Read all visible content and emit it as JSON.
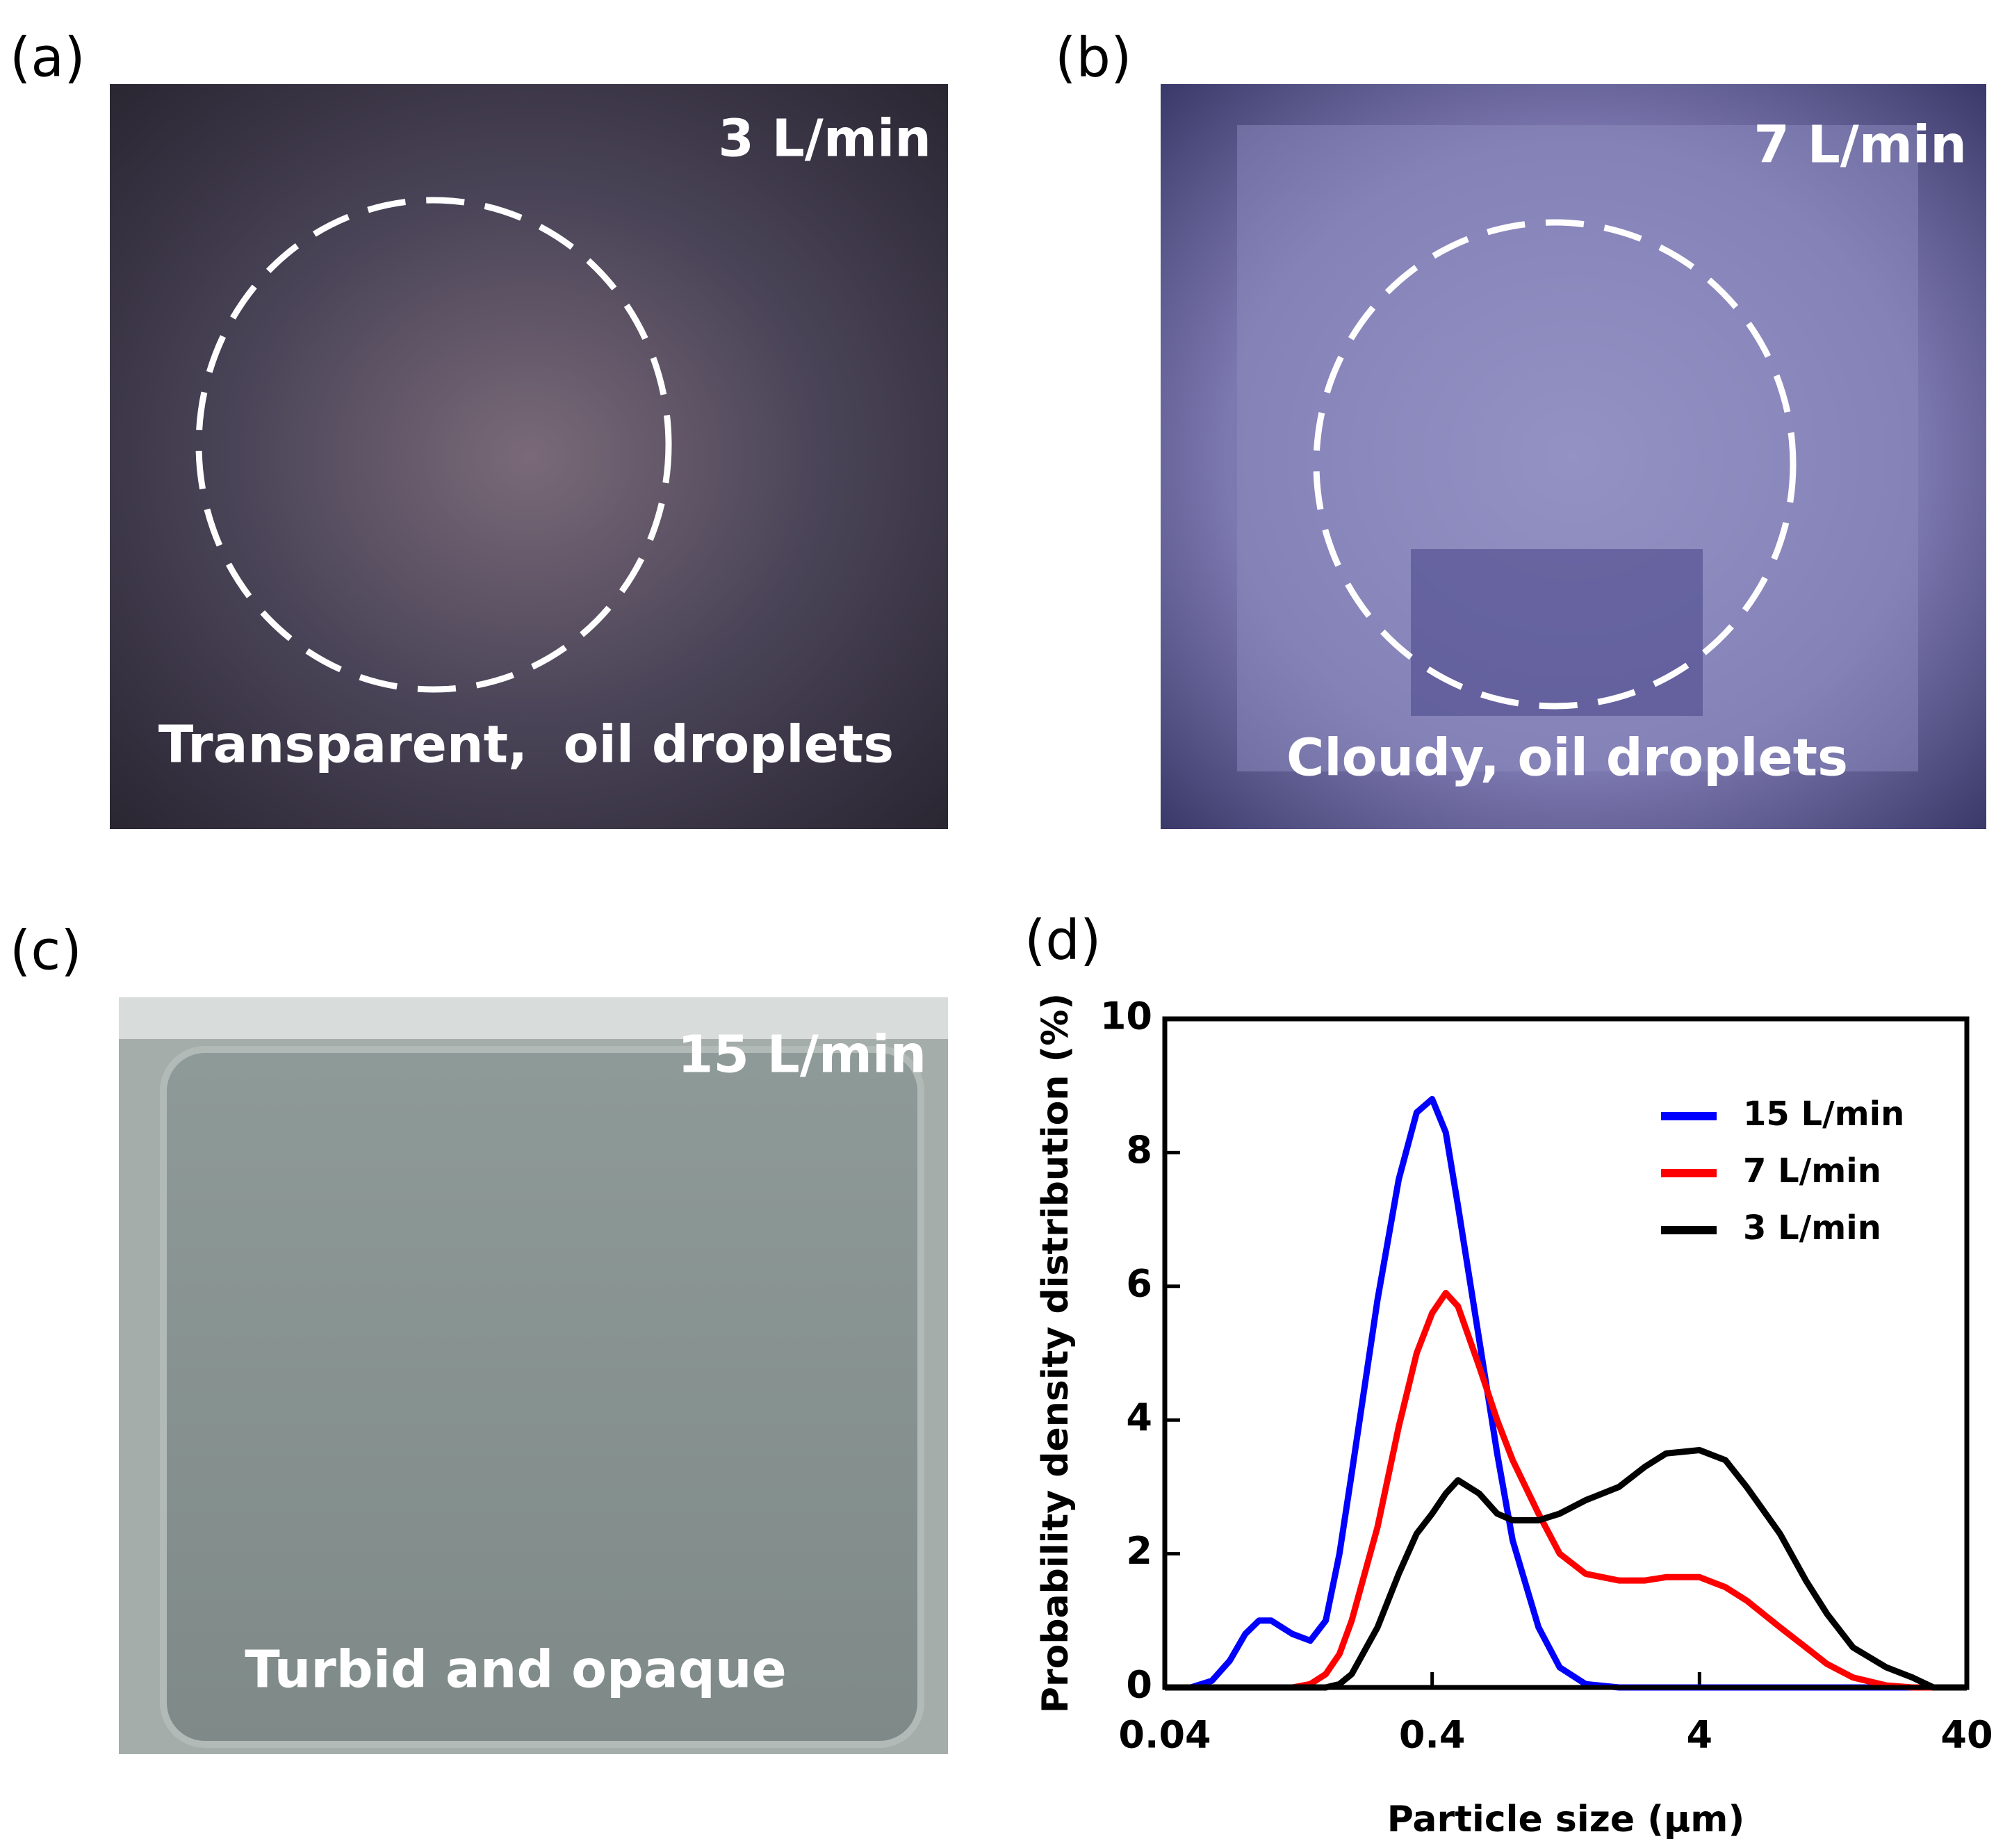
{
  "panels": [
    {
      "label": "(a)",
      "flow": "3 L/min",
      "caption": "Transparent,  oil droplets"
    },
    {
      "label": "(b)",
      "flow": "7 L/min",
      "caption": "Cloudy, oil droplets"
    },
    {
      "label": "(c)",
      "flow": "15 L/min",
      "caption": "Turbid and opaque"
    }
  ],
  "chart_data": {
    "type": "line",
    "panel_label": "(d)",
    "x_label": "Particle size (µm)",
    "y_label": "Probability density distribution (%)",
    "x_scale": "log",
    "xlim": [
      0.04,
      40
    ],
    "xticks": [
      0.04,
      0.4,
      4,
      40
    ],
    "ylim": [
      0,
      10
    ],
    "yticks": [
      0,
      2,
      4,
      6,
      8,
      10
    ],
    "legend": "upper right",
    "x": [
      0.04,
      0.05,
      0.06,
      0.07,
      0.08,
      0.09,
      0.1,
      0.12,
      0.14,
      0.16,
      0.18,
      0.2,
      0.25,
      0.3,
      0.35,
      0.4,
      0.45,
      0.5,
      0.6,
      0.7,
      0.8,
      1,
      1.2,
      1.5,
      2,
      2.5,
      3,
      4,
      5,
      6,
      8,
      10,
      12,
      15,
      20,
      25,
      30,
      40
    ],
    "series": [
      {
        "name": "15 L/min",
        "color": "#0000ff",
        "values": [
          0,
          0,
          0.1,
          0.4,
          0.8,
          1.0,
          1.0,
          0.8,
          0.7,
          1.0,
          2.0,
          3.2,
          5.8,
          7.6,
          8.6,
          8.8,
          8.3,
          7.2,
          5.2,
          3.5,
          2.2,
          0.9,
          0.3,
          0.05,
          0,
          0,
          0,
          0,
          0,
          0,
          0,
          0,
          0,
          0,
          0,
          0,
          0,
          0
        ]
      },
      {
        "name": "7 L/min",
        "color": "#ff0000",
        "values": [
          0,
          0,
          0,
          0,
          0,
          0,
          0,
          0,
          0.05,
          0.2,
          0.5,
          1.0,
          2.4,
          3.9,
          5.0,
          5.6,
          5.9,
          5.7,
          4.8,
          4.0,
          3.4,
          2.6,
          2.0,
          1.7,
          1.6,
          1.6,
          1.65,
          1.65,
          1.5,
          1.3,
          0.9,
          0.6,
          0.35,
          0.15,
          0.03,
          0,
          0,
          0
        ]
      },
      {
        "name": "3 L/min",
        "color": "#000000",
        "values": [
          0,
          0,
          0,
          0,
          0,
          0,
          0,
          0,
          0,
          0,
          0.05,
          0.2,
          0.9,
          1.7,
          2.3,
          2.6,
          2.9,
          3.1,
          2.9,
          2.6,
          2.5,
          2.5,
          2.6,
          2.8,
          3.0,
          3.3,
          3.5,
          3.55,
          3.4,
          3.0,
          2.3,
          1.6,
          1.1,
          0.6,
          0.3,
          0.15,
          0,
          0
        ]
      }
    ]
  }
}
